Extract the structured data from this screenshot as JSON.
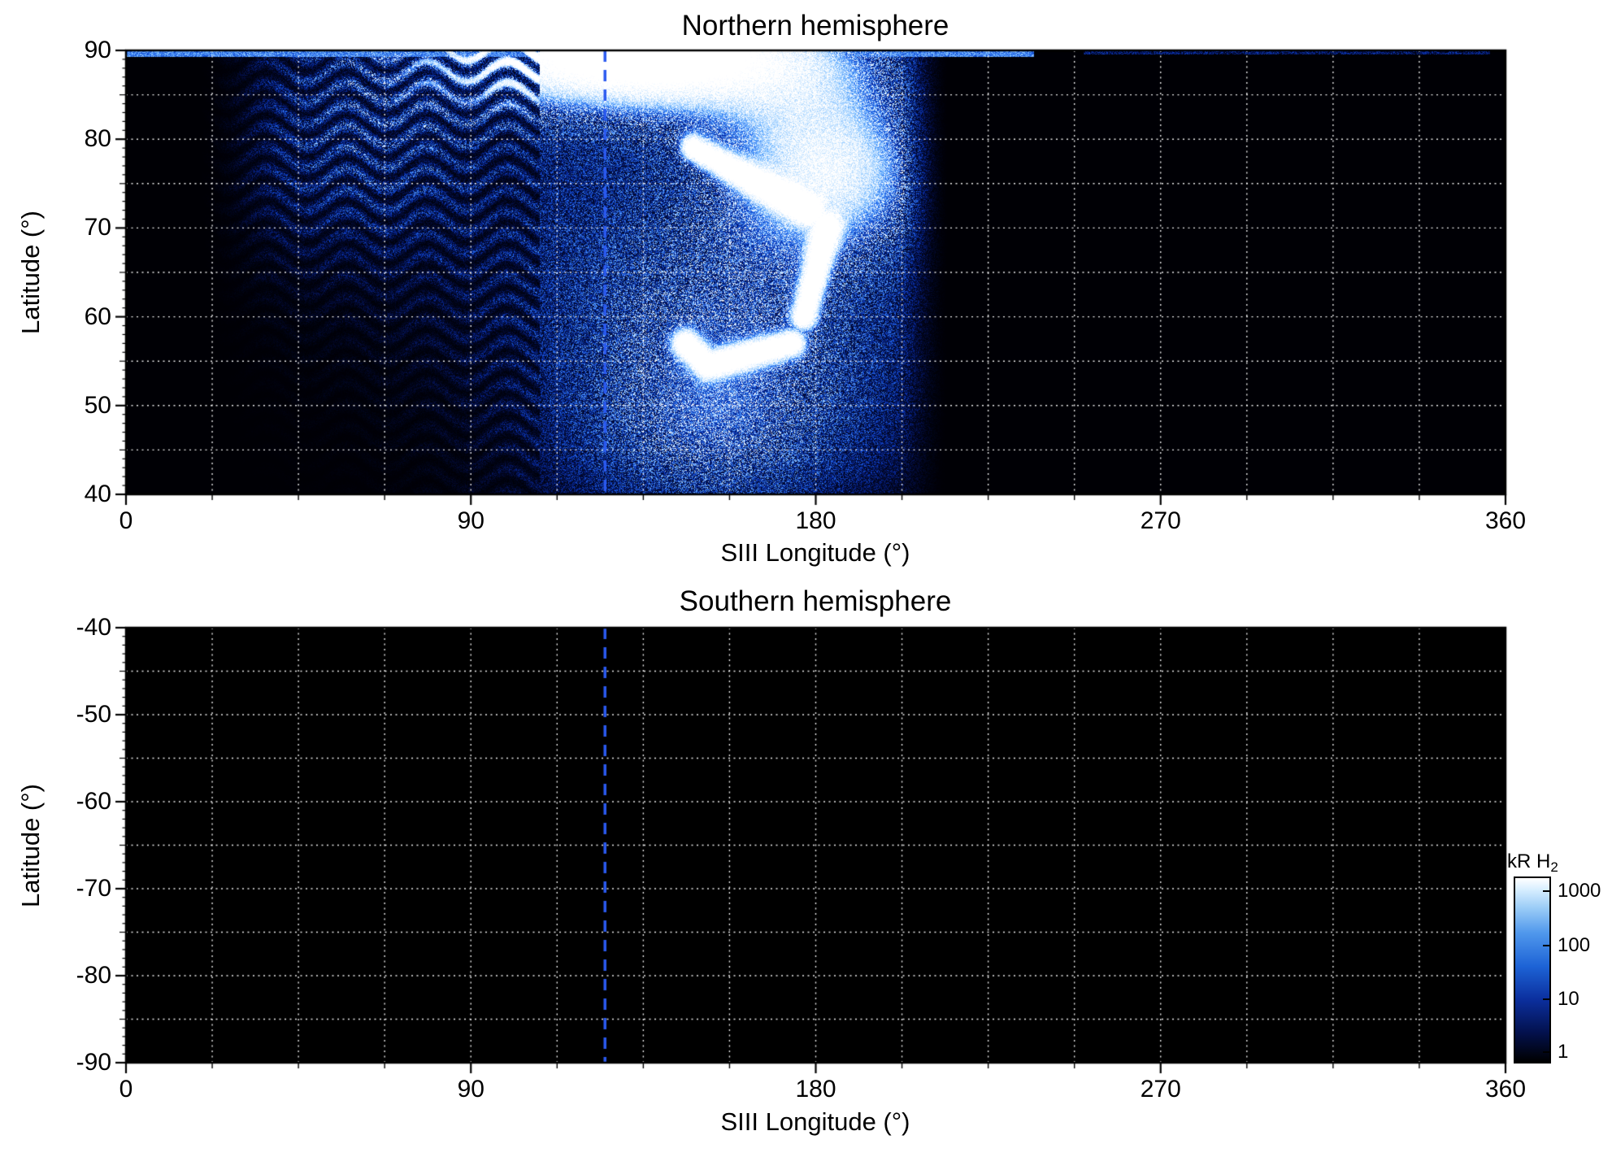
{
  "figure": {
    "marker_color": "#2b5af0",
    "panels": [
      {
        "id": "north",
        "title": "Northern hemisphere",
        "xlabel": "SIII Longitude (°)",
        "ylabel": "Latitude (°)",
        "xlim": [
          0,
          360
        ],
        "ylim": [
          40,
          90
        ],
        "xticks": [
          0,
          90,
          180,
          270,
          360
        ],
        "yticks": [
          90,
          80,
          70,
          60,
          50,
          40
        ],
        "marker_line_x": 125,
        "has_data": true
      },
      {
        "id": "south",
        "title": "Southern hemisphere",
        "xlabel": "SIII Longitude (°)",
        "ylabel": "Latitude (°)",
        "xlim": [
          0,
          360
        ],
        "ylim": [
          -90,
          -40
        ],
        "xticks": [
          0,
          90,
          180,
          270,
          360
        ],
        "yticks": [
          -40,
          -50,
          -60,
          -70,
          -80,
          -90
        ],
        "marker_line_x": 125,
        "has_data": false
      }
    ],
    "colorbar": {
      "label": "kR H",
      "label_sub": "2",
      "scale": "log",
      "ticks": [
        "1000",
        "100",
        "10",
        "1"
      ],
      "gradient": [
        "#ffffff",
        "#d9efff",
        "#9ccdf7",
        "#4f97ec",
        "#1d63d6",
        "#0b2f9e",
        "#03114d",
        "#000000"
      ]
    }
  },
  "chart_data": [
    {
      "type": "heatmap",
      "title": "Northern hemisphere",
      "xlabel": "SIII Longitude (°)",
      "ylabel": "Latitude (°)",
      "xlim": [
        0,
        360
      ],
      "ylim": [
        40,
        90
      ],
      "xticks": [
        0,
        90,
        180,
        270,
        360
      ],
      "yticks": [
        40,
        50,
        60,
        70,
        80,
        90
      ],
      "grid": "white dotted, every 22.5° longitude and 5° latitude",
      "background_value": "< 1 kR (black)",
      "colorscale": {
        "label": "kR H₂",
        "scale": "log",
        "range": [
          1,
          1000
        ],
        "colors": [
          "#000000",
          "#03114d",
          "#1d63d6",
          "#4f97ec",
          "#9ccdf7",
          "#ffffff"
        ]
      },
      "annotations": [
        {
          "type": "vline",
          "x": 125,
          "style": "dashed",
          "color": "#2b5af0"
        }
      ],
      "features": [
        {
          "name": "bright polar-cap emission",
          "lon_range": [
            90,
            185
          ],
          "lat_range": [
            80,
            90
          ],
          "intensity_kR": "~300-1000 (white)"
        },
        {
          "name": "thin bright line at pole edge",
          "lat": 90,
          "lon_range": [
            0,
            237
          ],
          "intensity_kR": "~100-1000"
        },
        {
          "name": "faint line at pole edge",
          "lat": 90,
          "lon_range": [
            250,
            356
          ],
          "intensity_kR": "~10"
        },
        {
          "name": "main auroral swirl arc",
          "path": "comma-shaped arc from (150°,78°) through (183°,65°) hooking back to (148°,55°)",
          "intensity_kR": "~100-1000"
        },
        {
          "name": "secondary bright lobe",
          "lon_range": [
            165,
            205
          ],
          "lat_range": [
            70,
            85
          ],
          "intensity_kR": "~30-300"
        },
        {
          "name": "diffuse speckled emission",
          "lon_range": [
            30,
            215
          ],
          "lat_range": [
            45,
            88
          ],
          "intensity_kR": "~1-100"
        },
        {
          "name": "striated left wing",
          "lon_range": [
            30,
            100
          ],
          "lat_range": [
            63,
            88
          ],
          "intensity_kR": "~3-30, horizontal streaks"
        },
        {
          "name": "low-latitude speckle extension",
          "lon_range": [
            110,
            205
          ],
          "lat_range": [
            40,
            60
          ],
          "intensity_kR": "~1-30"
        },
        {
          "name": "no emission",
          "lon_range": [
            215,
            360
          ],
          "lat_range": [
            40,
            88
          ],
          "intensity_kR": "< 1 (black)"
        }
      ]
    },
    {
      "type": "heatmap",
      "title": "Southern hemisphere",
      "xlabel": "SIII Longitude (°)",
      "ylabel": "Latitude (°)",
      "xlim": [
        0,
        360
      ],
      "ylim": [
        -90,
        -40
      ],
      "xticks": [
        0,
        90,
        180,
        270,
        360
      ],
      "yticks": [
        -90,
        -80,
        -70,
        -60,
        -50,
        -40
      ],
      "grid": "white dotted, every 22.5° longitude and 5° latitude",
      "annotations": [
        {
          "type": "vline",
          "x": 125,
          "style": "dashed",
          "color": "#2b5af0"
        }
      ],
      "features": [
        {
          "name": "background only",
          "intensity_kR": "< 1 (entirely black, no data)"
        }
      ]
    }
  ]
}
